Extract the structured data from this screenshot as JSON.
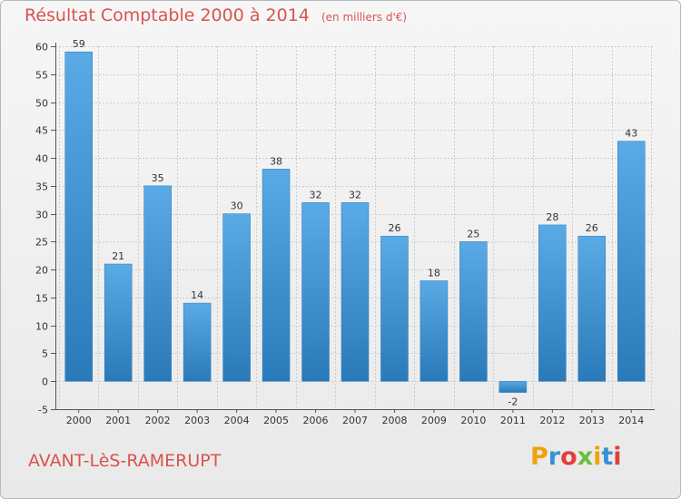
{
  "chart_data": {
    "type": "bar",
    "title": "Résultat Comptable 2000 à 2014",
    "subtitle": "(en milliers d'€)",
    "xlabel": "",
    "ylabel": "",
    "categories": [
      "2000",
      "2001",
      "2002",
      "2003",
      "2004",
      "2005",
      "2006",
      "2007",
      "2008",
      "2009",
      "2010",
      "2011",
      "2012",
      "2013",
      "2014"
    ],
    "values": [
      59,
      21,
      35,
      14,
      30,
      38,
      32,
      32,
      26,
      18,
      25,
      -2,
      28,
      26,
      43
    ],
    "ylim": [
      -5,
      60
    ],
    "yticks": [
      -5,
      0,
      5,
      10,
      15,
      20,
      25,
      30,
      35,
      40,
      45,
      50,
      55,
      60
    ],
    "grid": true
  },
  "footer": {
    "town": "AVANT-LèS-RAMERUPT",
    "logo_text": "Proxiti",
    "logo_colors": [
      "#f0a30a",
      "#3a8fd6",
      "#e2403a",
      "#6cbf3c",
      "#f0a30a",
      "#3a8fd6",
      "#e2403a"
    ]
  },
  "colors": {
    "title": "#d9534f",
    "bar_top": "#5aaae6",
    "bar_bottom": "#2a7ab9",
    "grid": "#cccccc"
  }
}
